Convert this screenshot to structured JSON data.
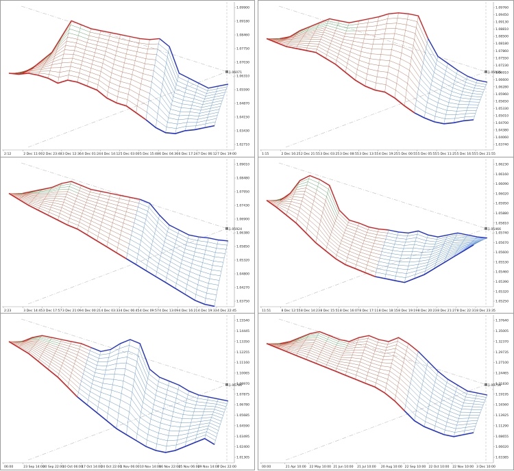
{
  "colors": {
    "surface_warm": "#a64b2a",
    "surface_cool": "#2a6fbf",
    "surface_green": "#2f8a3a",
    "front_edge": "#d61c1c",
    "back_edge": "#1f2fd6",
    "guide": "#bdbdbd",
    "axis": "#9a9a9a",
    "background": "#ffffff"
  },
  "chart_data": [
    {
      "type": "area",
      "panel": "top-left",
      "y_ticks": [
        "1.09900",
        "1.09180",
        "1.08460",
        "1.07750",
        "1.07030",
        "1.06310",
        "1.05590",
        "1.04870",
        "1.04150",
        "1.03430",
        "1.02710"
      ],
      "x_ticks": [
        "2:12",
        "2 Dec 11:00",
        "2 Dec 23:48",
        "3 Dec 12:36",
        "4 Dec 01:24",
        "4 Dec 14:12",
        "5 Dec 03:00",
        "5 Dec 15:48",
        "6 Dec 04:36",
        "6 Dec 17:24",
        "7 Dec 06:12",
        "7 Dec 19:00"
      ],
      "price_label": "1.06071",
      "back_ridge": [
        0.35,
        0.4,
        0.48,
        0.56,
        0.72,
        0.88,
        0.84,
        0.8,
        0.78,
        0.76,
        0.74,
        0.72,
        0.7,
        0.69,
        0.7,
        0.62,
        0.35,
        0.3,
        0.25,
        0.2,
        0.22,
        0.24
      ],
      "front_edge": [
        0.35,
        0.34,
        0.35,
        0.33,
        0.3,
        0.25,
        0.28,
        0.26,
        0.22,
        0.18,
        0.1,
        0.05,
        0.02,
        -0.05,
        -0.12,
        -0.2,
        -0.25,
        -0.26,
        -0.23,
        -0.22,
        -0.2,
        -0.18
      ],
      "cool_split": 0.7
    },
    {
      "type": "area",
      "panel": "top-right",
      "y_ticks": [
        "1.09760",
        "1.09450",
        "1.09130",
        "1.08810",
        "1.08500",
        "1.08180",
        "1.07860",
        "1.07550",
        "1.07230",
        "1.06910",
        "1.06600",
        "1.06280",
        "1.05960",
        "1.05650",
        "1.05330",
        "1.05010",
        "1.04700",
        "1.04380",
        "1.04060",
        "1.03740"
      ],
      "x_ticks": [
        "1:15",
        "2 Dec 16:25",
        "2 Dec 21:55",
        "3 Dec 03:25",
        "3 Dec 08:55",
        "3 Dec 13:55",
        "4 Dec 19:25",
        "5 Dec 00:55",
        "5 Dec 05:55",
        "5 Dec 11:25",
        "5 Dec 16:55",
        "5 Dec 21:55"
      ],
      "price_label": "1.05985",
      "back_ridge": [
        0.7,
        0.72,
        0.78,
        0.82,
        0.86,
        0.9,
        0.88,
        0.86,
        0.88,
        0.9,
        0.92,
        0.95,
        0.96,
        0.95,
        0.93,
        0.7,
        0.52,
        0.45,
        0.38,
        0.32,
        0.28,
        0.26
      ],
      "front_edge": [
        0.7,
        0.66,
        0.62,
        0.6,
        0.58,
        0.56,
        0.5,
        0.44,
        0.36,
        0.28,
        0.22,
        0.18,
        0.16,
        0.1,
        0.02,
        -0.05,
        -0.1,
        -0.14,
        -0.16,
        -0.15,
        -0.13,
        -0.12
      ],
      "cool_split": 0.72
    },
    {
      "type": "area",
      "panel": "middle-left",
      "y_ticks": [
        "1.09010",
        "1.08480",
        "1.07950",
        "1.07430",
        "1.06900",
        "1.06380",
        "1.05850",
        "1.05320",
        "1.04800",
        "1.04270",
        "1.03750"
      ],
      "x_ticks": [
        "2:23",
        "3 Dec 14:45",
        "3 Dec 17:57",
        "3 Dec 21:09",
        "4 Dec 00:21",
        "4 Dec 03:33",
        "4 Dec 06:45",
        "4 Dec 09:57",
        "4 Dec 13:09",
        "4 Dec 16:21",
        "4 Dec 19:33",
        "4 Dec 22:45"
      ],
      "price_label": "1.05924",
      "back_ridge": [
        0.72,
        0.74,
        0.76,
        0.78,
        0.82,
        0.84,
        0.8,
        0.76,
        0.74,
        0.72,
        0.7,
        0.68,
        0.66,
        0.62,
        0.5,
        0.4,
        0.35,
        0.3,
        0.28,
        0.27,
        0.25,
        0.24
      ],
      "front_edge": [
        0.72,
        0.66,
        0.6,
        0.55,
        0.5,
        0.45,
        0.4,
        0.36,
        0.3,
        0.24,
        0.18,
        0.12,
        0.06,
        0.0,
        -0.06,
        -0.12,
        -0.18,
        -0.24,
        -0.3,
        -0.36,
        -0.4,
        -0.42
      ],
      "cool_split": 0.6
    },
    {
      "type": "area",
      "panel": "middle-right",
      "y_ticks": [
        "1.06230",
        "1.06160",
        "1.06090",
        "1.06020",
        "1.05950",
        "1.05880",
        "1.05810",
        "1.05740",
        "1.05670",
        "1.05600",
        "1.05530",
        "1.05460",
        "1.05390",
        "1.05320",
        "1.05250"
      ],
      "x_ticks": [
        "11:51",
        "8 Dec 12:55",
        "8 Dec 14:23",
        "8 Dec 15:51",
        "8 Dec 16:07",
        "8 Dec 17:11",
        "8 Dec 18:15",
        "8 Dec 19:19",
        "8 Dec 20:23",
        "8 Dec 21:27",
        "8 Dec 22:31",
        "8 Dec 23:35"
      ],
      "price_label": "1.05466",
      "back_ridge": [
        0.65,
        0.72,
        0.85,
        0.9,
        0.86,
        0.8,
        0.55,
        0.45,
        0.42,
        0.38,
        0.36,
        0.35,
        0.33,
        0.32,
        0.34,
        0.3,
        0.28,
        0.3,
        0.32,
        0.3,
        0.28,
        0.27
      ],
      "front_edge": [
        0.65,
        0.58,
        0.5,
        0.42,
        0.32,
        0.22,
        0.14,
        0.06,
        0.0,
        -0.04,
        -0.08,
        -0.12,
        -0.14,
        -0.16,
        -0.18,
        -0.14,
        -0.1,
        -0.04,
        0.02,
        0.08,
        0.14,
        0.2
      ],
      "cool_split": 0.55
    },
    {
      "type": "area",
      "panel": "bottom-left",
      "y_ticks": [
        "1.15540",
        "1.14445",
        "1.13350",
        "1.12255",
        "1.11160",
        "1.10065",
        "1.08970",
        "1.07875",
        "1.06780",
        "1.05685",
        "1.04590",
        "1.03495",
        "1.02400",
        "1.01305"
      ],
      "x_ticks": [
        "06:00",
        "23 Sep 14:00",
        "30 Sep 22:00",
        "10 Oct 06:00",
        "17 Oct 14:00",
        "24 Oct 22:00",
        "1 Nov 06:00",
        "10 Nov 14:00",
        "16 Nov 22:00",
        "25 Nov 06:00",
        "29 Nov 14:00",
        "7 Dec 22:00"
      ],
      "price_label": "1.06786",
      "back_ridge": [
        0.8,
        0.84,
        0.86,
        0.84,
        0.82,
        0.8,
        0.78,
        0.74,
        0.7,
        0.72,
        0.78,
        0.82,
        0.78,
        0.52,
        0.44,
        0.4,
        0.36,
        0.3,
        0.26,
        0.24,
        0.22,
        0.2
      ],
      "front_edge": [
        0.8,
        0.74,
        0.68,
        0.6,
        0.52,
        0.44,
        0.34,
        0.24,
        0.16,
        0.08,
        0.0,
        -0.08,
        -0.14,
        -0.2,
        -0.26,
        -0.3,
        -0.32,
        -0.3,
        -0.26,
        -0.22,
        -0.18,
        -0.24
      ],
      "cool_split": 0.35
    },
    {
      "type": "area",
      "panel": "bottom-right",
      "y_ticks": [
        "1.37640",
        "1.35005",
        "1.32370",
        "1.29735",
        "1.27100",
        "1.24465",
        "1.21830",
        "1.19195",
        "1.16560",
        "1.13925",
        "1.11290",
        "1.08655",
        "1.06020",
        "1.03385"
      ],
      "x_ticks": [
        "00:00",
        "21 Apr 10:00",
        "22 May 10:00",
        "21 Jun 10:00",
        "21 Jul 10:00",
        "20 Aug 10:00",
        "22 Sep 10:00",
        "22 Oct 10:00",
        "22 Nov 10:00",
        "3 Dec 10:00"
      ],
      "price_label": "1.09758",
      "back_ridge": [
        0.78,
        0.8,
        0.84,
        0.88,
        0.9,
        0.86,
        0.82,
        0.8,
        0.84,
        0.86,
        0.82,
        0.8,
        0.84,
        0.78,
        0.7,
        0.6,
        0.5,
        0.42,
        0.36,
        0.3,
        0.28,
        0.26
      ],
      "front_edge": [
        0.78,
        0.74,
        0.7,
        0.66,
        0.62,
        0.58,
        0.54,
        0.5,
        0.46,
        0.42,
        0.38,
        0.34,
        0.28,
        0.2,
        0.1,
        0.0,
        -0.06,
        -0.1,
        -0.14,
        -0.16,
        -0.14,
        -0.12
      ],
      "cool_split": 0.68
    }
  ]
}
